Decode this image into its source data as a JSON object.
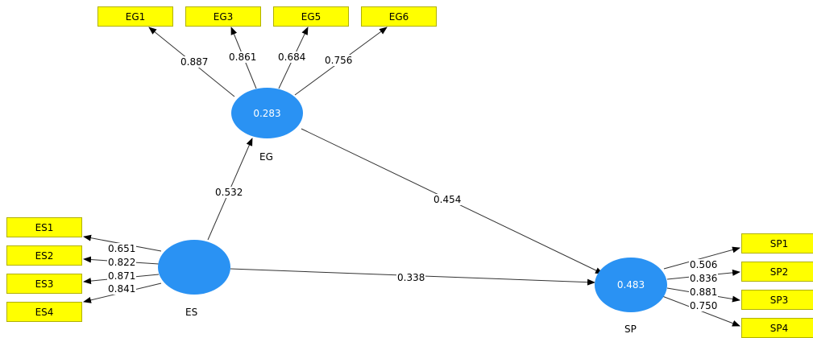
{
  "constructs": {
    "EG": {
      "name": "EG",
      "r2": "0.283"
    },
    "ES": {
      "name": "ES",
      "r2": ""
    },
    "SP": {
      "name": "SP",
      "r2": "0.483"
    }
  },
  "indicators": {
    "EG": [
      "EG1",
      "EG3",
      "EG5",
      "EG6"
    ],
    "ES": [
      "ES1",
      "ES2",
      "ES3",
      "ES4"
    ],
    "SP": [
      "SP1",
      "SP2",
      "SP3",
      "SP4"
    ]
  },
  "loadings": {
    "EG": [
      "0.887",
      "0.861",
      "0.684",
      "0.756"
    ],
    "ES": [
      "0.651",
      "0.822",
      "0.871",
      "0.841"
    ],
    "SP": [
      "0.506",
      "0.836",
      "0.881",
      "0.750"
    ]
  },
  "paths": {
    "ES_EG": "0.532",
    "EG_SP": "0.454",
    "ES_SP": "0.338"
  },
  "colors": {
    "indicator_fill": "#ffff00",
    "construct_fill": "#2a92f3",
    "arrow": "#000000"
  }
}
